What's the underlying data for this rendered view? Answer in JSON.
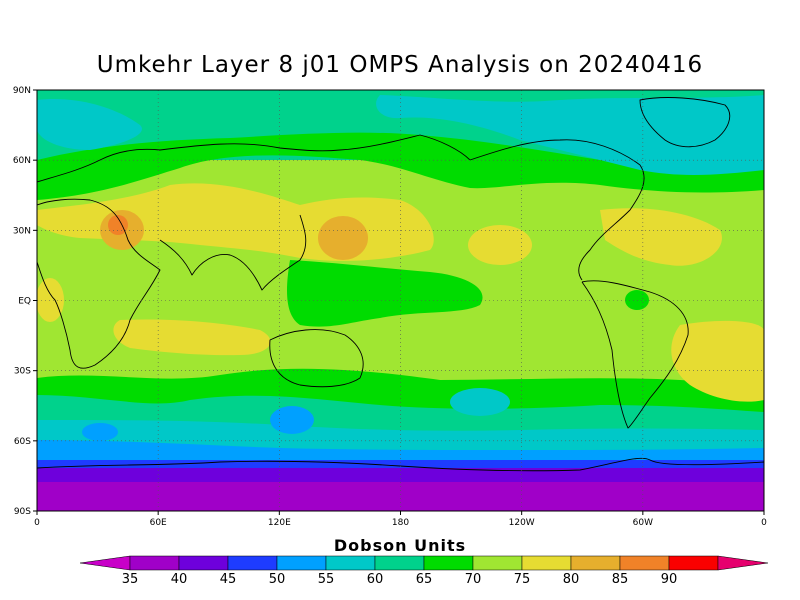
{
  "title": "Umkehr Layer 8 j01 OMPS Analysis on 20240416",
  "lat_ticks": [
    "90N",
    "60N",
    "30N",
    "EQ",
    "30S",
    "60S",
    "90S"
  ],
  "lon_ticks": [
    "0",
    "60E",
    "120E",
    "180",
    "120W",
    "60W",
    "0"
  ],
  "colorbar": {
    "title": "Dobson Units",
    "labels": [
      "35",
      "40",
      "45",
      "50",
      "55",
      "60",
      "65",
      "70",
      "75",
      "80",
      "85",
      "90"
    ],
    "colors": [
      "#a000c8",
      "#6e00dc",
      "#1e3cff",
      "#00a0ff",
      "#00c8c8",
      "#00d28c",
      "#00dc00",
      "#a0e632",
      "#e6dc32",
      "#e6af2d",
      "#f08228",
      "#fa0000",
      "#e6006e"
    ],
    "under_color": "#c800c8"
  },
  "map": {
    "colors": {
      "purple": "#a000c8",
      "violet": "#6e00dc",
      "blue": "#1e3cff",
      "sky": "#00a0ff",
      "cyan": "#00c8c8",
      "teal": "#00d28c",
      "green": "#00dc00",
      "lime": "#a0e632",
      "yellow": "#e6dc32",
      "orange": "#e6af2d",
      "dark_orange": "#f08228"
    }
  }
}
